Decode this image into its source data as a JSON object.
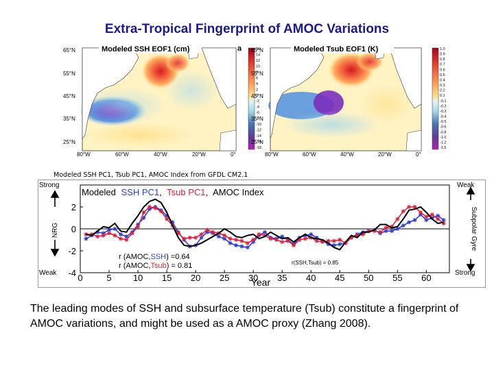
{
  "title": "Extra-Tropical Fingerprint of AMOC Variations",
  "maps": {
    "left": {
      "title": "Modeled SSH EOF1 (cm)",
      "panel_label": "a",
      "lat_labels": [
        "65°N",
        "55°N",
        "45°N",
        "35°N",
        "25°N"
      ],
      "lon_labels": [
        "80°W",
        "60°W",
        "40°W",
        "20°W",
        "0°"
      ],
      "colorbar_ticks": [
        "16",
        "14",
        "12",
        "10",
        "8",
        "6",
        "4",
        "2",
        "0",
        "-2",
        "-4",
        "-6",
        "-8",
        "-10",
        "-12",
        "-14",
        "-16",
        "-18"
      ]
    },
    "right": {
      "title": "Modeled Tsub EOF1 (K)",
      "lat_labels": [
        "65°N",
        "55°N",
        "45°N",
        "35°N",
        "25°N"
      ],
      "lon_labels": [
        "80°W",
        "60°W",
        "40°W",
        "20°W",
        "0°"
      ],
      "colorbar_ticks": [
        "1.0",
        "0.9",
        "0.8",
        "0.7",
        "0.6",
        "0.5",
        "0.4",
        "0.3",
        "0.2",
        "0.1",
        "-0.1",
        "-0.2",
        "-0.3",
        "-0.4",
        "-0.5",
        "-0.6",
        "-0.8",
        "-1.0",
        "-1.2",
        "-1.5"
      ]
    }
  },
  "ts_caption": "Modeled SSH PC1, Tsub PC1, AMOC Index from GFDL CM2.1",
  "chart_data": {
    "type": "line",
    "xlabel": "Year",
    "ylabel": "NRG",
    "right_label": "Subpolar Gyre",
    "xlim": [
      0,
      64
    ],
    "ylim": [
      -4,
      4
    ],
    "xticks": [
      0,
      5,
      10,
      15,
      20,
      25,
      30,
      35,
      40,
      45,
      50,
      55,
      60
    ],
    "yticks": [
      -4,
      -2,
      0,
      2
    ],
    "left_top_label": "Strong",
    "left_bottom_label": "Weak",
    "right_top_label": "Weak",
    "right_bottom_label": "Strong",
    "legend": {
      "prefix": "Modeled",
      "ssh": "SSH PC1",
      "sep": ",",
      "tsub": "Tsub PC1",
      "amoc": "AMOC Index"
    },
    "stats": {
      "r1_prefix": "r (AMOC,",
      "r1_var": "SSH",
      "r1_value": ") =0.64",
      "r2_prefix": "r (AMOC,",
      "r2_var": "Tsub",
      "r2_value": ") = 0.81",
      "r3": "r(SSH,Tsub) = 0.85"
    },
    "colors": {
      "amoc": "#000000",
      "ssh": "#2a3fd6",
      "tsub": "#e0203a"
    },
    "series": [
      {
        "name": "AMOC Index",
        "x": [
          1,
          2,
          3,
          4,
          5,
          6,
          7,
          8,
          9,
          10,
          11,
          12,
          13,
          14,
          15,
          16,
          17,
          18,
          19,
          20,
          21,
          22,
          23,
          24,
          25,
          26,
          27,
          28,
          29,
          30,
          31,
          32,
          33,
          34,
          35,
          36,
          37,
          38,
          39,
          40,
          41,
          42,
          43,
          44,
          45,
          46,
          47,
          48,
          49,
          50,
          51,
          52,
          53,
          54,
          55,
          56,
          57,
          58,
          59,
          60,
          61,
          62,
          63
        ],
        "y": [
          -0.5,
          -0.6,
          -0.2,
          0.2,
          0.1,
          0.5,
          -0.2,
          -0.3,
          0.5,
          1.2,
          2.0,
          2.5,
          2.7,
          2.4,
          1.5,
          0.3,
          -0.8,
          -1.5,
          -1.6,
          -1.5,
          -1.3,
          -1.0,
          -0.7,
          -0.4,
          0.0,
          -0.3,
          -0.7,
          -0.8,
          -0.6,
          -0.5,
          -0.9,
          -0.7,
          -0.3,
          -0.6,
          -0.9,
          -0.8,
          -1.2,
          -0.8,
          -0.5,
          -0.8,
          -0.9,
          -1.0,
          -1.3,
          -1.7,
          -1.9,
          -1.2,
          -0.6,
          -0.8,
          -0.3,
          -0.3,
          -0.1,
          0.4,
          0.4,
          0.1,
          0.2,
          0.9,
          1.7,
          1.8,
          2.0,
          1.5,
          0.9,
          0.5,
          0.6
        ]
      },
      {
        "name": "SSH PC1",
        "x": [
          1,
          2,
          3,
          4,
          5,
          6,
          7,
          8,
          9,
          10,
          11,
          12,
          13,
          14,
          15,
          16,
          17,
          18,
          19,
          20,
          21,
          22,
          23,
          24,
          25,
          26,
          27,
          28,
          29,
          30,
          31,
          32,
          33,
          34,
          35,
          36,
          37,
          38,
          39,
          40,
          41,
          42,
          43,
          44,
          45,
          46,
          47,
          48,
          49,
          50,
          51,
          52,
          53,
          54,
          55,
          56,
          57,
          58,
          59,
          60,
          61,
          62,
          63
        ],
        "y": [
          -0.9,
          -0.6,
          -0.3,
          -0.4,
          -0.1,
          0.0,
          -0.5,
          -0.7,
          -0.3,
          0.4,
          1.0,
          1.8,
          2.0,
          1.7,
          1.2,
          0.6,
          -0.3,
          -1.0,
          -1.6,
          -1.5,
          -0.8,
          -0.3,
          -0.4,
          -0.7,
          -0.9,
          -1.3,
          -1.5,
          -1.6,
          -1.7,
          -1.2,
          -0.6,
          -0.3,
          -0.8,
          -0.9,
          -0.7,
          -1.0,
          -1.4,
          -0.8,
          -0.6,
          -0.5,
          -0.8,
          -1.1,
          -1.4,
          -1.5,
          -1.4,
          -1.3,
          -0.8,
          -0.5,
          -0.3,
          -0.2,
          -0.1,
          -0.4,
          -0.2,
          -0.2,
          0.0,
          0.3,
          0.6,
          0.8,
          1.3,
          0.8,
          1.0,
          1.2,
          0.8
        ]
      },
      {
        "name": "Tsub PC1",
        "x": [
          1,
          2,
          3,
          4,
          5,
          6,
          7,
          8,
          9,
          10,
          11,
          12,
          13,
          14,
          15,
          16,
          17,
          18,
          19,
          20,
          21,
          22,
          23,
          24,
          25,
          26,
          27,
          28,
          29,
          30,
          31,
          32,
          33,
          34,
          35,
          36,
          37,
          38,
          39,
          40,
          41,
          42,
          43,
          44,
          45,
          46,
          47,
          48,
          49,
          50,
          51,
          52,
          53,
          54,
          55,
          56,
          57,
          58,
          59,
          60,
          61,
          62,
          63
        ],
        "y": [
          -0.5,
          -0.5,
          -0.7,
          -0.6,
          -0.4,
          -0.6,
          -0.9,
          -1.0,
          -0.4,
          0.2,
          1.5,
          2.0,
          1.9,
          1.6,
          0.9,
          0.3,
          -0.4,
          -0.9,
          -0.8,
          -0.8,
          -0.5,
          -0.1,
          -0.3,
          -0.4,
          -0.6,
          -0.9,
          -1.0,
          -1.1,
          -1.3,
          -1.0,
          -0.5,
          -0.6,
          -0.9,
          -1.0,
          -1.2,
          -1.1,
          -1.5,
          -1.0,
          -0.9,
          -0.8,
          -1.1,
          -1.2,
          -1.1,
          -1.1,
          -1.0,
          -1.3,
          -0.8,
          -0.6,
          -0.5,
          -0.2,
          -0.2,
          -0.3,
          0.1,
          0.2,
          0.9,
          1.6,
          2.0,
          2.0,
          1.5,
          1.1,
          1.3,
          0.9,
          0.5
        ]
      }
    ]
  },
  "body_text": "The leading modes of SSH and subsurface temperature (Tsub) constitute a fingerprint of AMOC variations, and might be used as a AMOC proxy (Zhang 2008)."
}
